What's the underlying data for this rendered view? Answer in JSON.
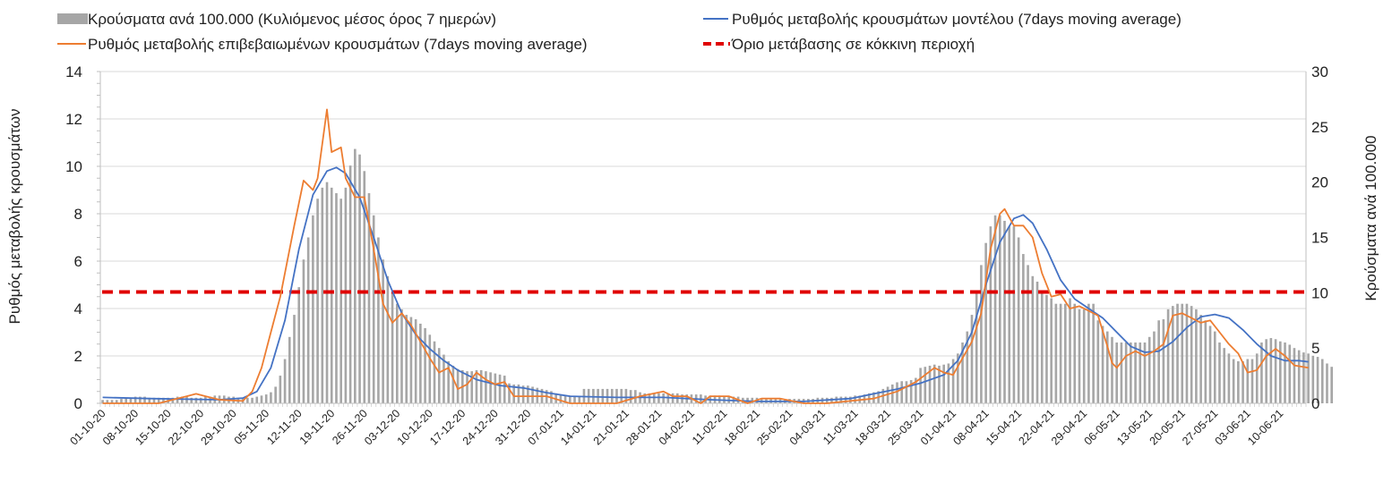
{
  "chart_data": {
    "type": "bar+line",
    "title": "",
    "colors": {
      "bars": "#a6a6a6",
      "model": "#4472c4",
      "confirmed": "#ed7d31",
      "threshold": "#e00000",
      "grid": "#d9d9d9"
    },
    "legend": {
      "placement": "top",
      "items": [
        {
          "key": "bars",
          "label": "Κρούσματα ανά 100.000 (Κυλιόμενος μέσος όρος 7 ημερών)"
        },
        {
          "key": "model",
          "label": "Ρυθμός μεταβολής κρουσμάτων μοντέλου (7days moving average)"
        },
        {
          "key": "confirmed",
          "label": "Ρυθμός μεταβολής επιβεβαιωμένων κρουσμάτων (7days moving average)"
        },
        {
          "key": "threshold",
          "label": "Όριο μετάβασης σε κόκκινη περιοχή"
        }
      ]
    },
    "y_left": {
      "label": "Ρυθμός μεταβολής κρουσμάτων",
      "ylim": [
        0,
        14
      ],
      "ticks": [
        "0",
        "2",
        "4",
        "6",
        "8",
        "10",
        "12",
        "14"
      ]
    },
    "y_right": {
      "label": "Κρούσματα ανά 100.000",
      "ylim": [
        0,
        30
      ],
      "ticks": [
        "0",
        "5",
        "10",
        "15",
        "20",
        "25",
        "30"
      ]
    },
    "grid": true,
    "x": {
      "start": "01-10-20",
      "end": "15-06-21",
      "days": 258,
      "tick_labels": [
        "01-10-20",
        "08-10-20",
        "15-10-20",
        "22-10-20",
        "29-10-20",
        "05-11-20",
        "12-11-20",
        "19-11-20",
        "26-11-20",
        "03-12-20",
        "10-12-20",
        "17-12-20",
        "24-12-20",
        "31-12-20",
        "07-01-21",
        "14-01-21",
        "21-01-21",
        "28-01-21",
        "04-02-21",
        "11-02-21",
        "18-02-21",
        "25-02-21",
        "04-03-21",
        "11-03-21",
        "18-03-21",
        "25-03-21",
        "01-04-21",
        "08-04-21",
        "15-04-21",
        "22-04-21",
        "29-04-21",
        "06-05-21",
        "13-05-21",
        "20-05-21",
        "27-05-21",
        "03-06-21",
        "10-06-21"
      ]
    },
    "series": [
      {
        "name": "Κρούσματα ανά 100.000 (Κυλιόμενος μέσος όρος 7 ημερών)",
        "axis": "right",
        "kind": "bar",
        "values": [
          0.3,
          0.3,
          0.3,
          0.3,
          0.4,
          0.5,
          0.5,
          0.6,
          0.6,
          0.6,
          0.5,
          0.5,
          0.5,
          0.5,
          0.5,
          0.5,
          0.6,
          0.6,
          0.6,
          0.5,
          0.5,
          0.5,
          0.6,
          0.6,
          0.7,
          0.7,
          0.7,
          0.6,
          0.6,
          0.5,
          0.5,
          0.5,
          0.5,
          0.6,
          0.7,
          0.8,
          1.0,
          1.5,
          2.5,
          4.0,
          6.0,
          8.0,
          10.5,
          13.0,
          15.0,
          17.0,
          18.5,
          19.5,
          20.0,
          19.5,
          19.0,
          18.5,
          19.5,
          21.5,
          23.0,
          22.5,
          21.0,
          19.0,
          17.0,
          15.0,
          13.0,
          11.5,
          10.0,
          9.0,
          8.5,
          8.0,
          7.8,
          7.6,
          7.2,
          6.8,
          6.2,
          5.6,
          5.0,
          4.4,
          3.8,
          3.4,
          3.1,
          3.0,
          2.9,
          2.9,
          3.0,
          3.0,
          2.9,
          2.8,
          2.7,
          2.6,
          2.5,
          1.8,
          1.7,
          1.7,
          1.6,
          1.6,
          1.5,
          1.4,
          1.3,
          1.2,
          1.1,
          0.9,
          0.8,
          0.7,
          0.7,
          0.6,
          0.6,
          1.3,
          1.3,
          1.3,
          1.3,
          1.3,
          1.3,
          1.3,
          1.3,
          1.3,
          1.3,
          1.2,
          1.2,
          1.0,
          0.9,
          0.9,
          0.9,
          0.9,
          0.9,
          0.9,
          0.9,
          0.9,
          0.8,
          0.8,
          0.8,
          0.8,
          0.8,
          0.7,
          0.7,
          0.7,
          0.7,
          0.6,
          0.6,
          0.6,
          0.6,
          0.5,
          0.5,
          0.5,
          0.5,
          0.4,
          0.4,
          0.4,
          0.4,
          0.4,
          0.4,
          0.4,
          0.4,
          0.4,
          0.4,
          0.4,
          0.4,
          0.5,
          0.5,
          0.5,
          0.5,
          0.6,
          0.6,
          0.6,
          0.6,
          0.7,
          0.7,
          0.8,
          0.9,
          1.0,
          1.1,
          1.3,
          1.5,
          1.7,
          1.9,
          2.0,
          2.0,
          2.1,
          2.3,
          3.2,
          3.3,
          3.4,
          3.5,
          3.4,
          3.5,
          3.6,
          4.0,
          4.5,
          5.5,
          6.5,
          8.0,
          10.0,
          12.5,
          14.5,
          16.0,
          17.0,
          17.0,
          16.5,
          16.0,
          16.0,
          15.0,
          13.5,
          12.5,
          11.5,
          11.0,
          10.0,
          9.8,
          9.5,
          9.0,
          9.0,
          9.0,
          9.5,
          9.0,
          8.5,
          8.5,
          9.0,
          9.0,
          7.5,
          7.0,
          6.5,
          6.0,
          5.5,
          5.5,
          5.5,
          5.5,
          5.5,
          5.5,
          5.5,
          6.0,
          6.5,
          7.5,
          7.6,
          8.5,
          8.8,
          9.0,
          9.0,
          9.0,
          8.8,
          8.5,
          8.0,
          7.5,
          7.0,
          6.5,
          5.5,
          5.0,
          4.5,
          4.0,
          3.8,
          3.8,
          4.0,
          4.0,
          4.5,
          5.5,
          5.8,
          5.9,
          5.8,
          5.6,
          5.5,
          5.3,
          5.0,
          4.8,
          4.6,
          4.5,
          4.3,
          4.2,
          4.0,
          3.6,
          3.3
        ]
      },
      {
        "name": "Ρυθμός μεταβολής κρουσμάτων μοντέλου (7days moving average)",
        "axis": "left",
        "kind": "line",
        "points": [
          [
            0,
            0.25
          ],
          [
            10,
            0.2
          ],
          [
            25,
            0.15
          ],
          [
            30,
            0.22
          ],
          [
            33,
            0.5
          ],
          [
            36,
            1.5
          ],
          [
            39,
            3.5
          ],
          [
            42,
            6.5
          ],
          [
            45,
            8.8
          ],
          [
            48,
            9.8
          ],
          [
            50,
            9.95
          ],
          [
            52,
            9.7
          ],
          [
            55,
            8.7
          ],
          [
            58,
            7.0
          ],
          [
            61,
            5.2
          ],
          [
            64,
            3.8
          ],
          [
            67,
            2.9
          ],
          [
            70,
            2.3
          ],
          [
            73,
            1.8
          ],
          [
            76,
            1.4
          ],
          [
            80,
            1.0
          ],
          [
            85,
            0.75
          ],
          [
            90,
            0.65
          ],
          [
            95,
            0.45
          ],
          [
            100,
            0.3
          ],
          [
            110,
            0.25
          ],
          [
            120,
            0.25
          ],
          [
            130,
            0.15
          ],
          [
            140,
            0.08
          ],
          [
            150,
            0.08
          ],
          [
            160,
            0.2
          ],
          [
            165,
            0.4
          ],
          [
            170,
            0.6
          ],
          [
            175,
            0.85
          ],
          [
            180,
            1.2
          ],
          [
            183,
            1.8
          ],
          [
            186,
            3.0
          ],
          [
            189,
            5.0
          ],
          [
            192,
            6.8
          ],
          [
            195,
            7.8
          ],
          [
            197,
            7.95
          ],
          [
            199,
            7.6
          ],
          [
            202,
            6.5
          ],
          [
            205,
            5.2
          ],
          [
            208,
            4.4
          ],
          [
            211,
            4.0
          ],
          [
            214,
            3.6
          ],
          [
            217,
            3.0
          ],
          [
            220,
            2.4
          ],
          [
            223,
            2.15
          ],
          [
            226,
            2.2
          ],
          [
            229,
            2.6
          ],
          [
            232,
            3.2
          ],
          [
            235,
            3.65
          ],
          [
            238,
            3.75
          ],
          [
            241,
            3.6
          ],
          [
            244,
            3.1
          ],
          [
            247,
            2.5
          ],
          [
            250,
            2.0
          ],
          [
            253,
            1.8
          ],
          [
            256,
            1.8
          ],
          [
            258,
            1.75
          ]
        ]
      },
      {
        "name": "Ρυθμός μεταβολής επιβεβαιωμένων κρουσμάτων (7days moving average)",
        "axis": "left",
        "kind": "line",
        "points": [
          [
            0,
            0.0
          ],
          [
            12,
            0.0
          ],
          [
            15,
            0.15
          ],
          [
            18,
            0.3
          ],
          [
            20,
            0.4
          ],
          [
            22,
            0.3
          ],
          [
            25,
            0.15
          ],
          [
            30,
            0.1
          ],
          [
            32,
            0.5
          ],
          [
            34,
            1.5
          ],
          [
            36,
            3.0
          ],
          [
            38,
            4.5
          ],
          [
            40,
            6.5
          ],
          [
            41,
            7.5
          ],
          [
            43,
            9.4
          ],
          [
            45,
            9.0
          ],
          [
            46,
            9.5
          ],
          [
            48,
            12.4
          ],
          [
            49,
            10.6
          ],
          [
            51,
            10.8
          ],
          [
            52,
            9.5
          ],
          [
            54,
            8.7
          ],
          [
            56,
            8.7
          ],
          [
            58,
            6.5
          ],
          [
            60,
            4.2
          ],
          [
            62,
            3.4
          ],
          [
            64,
            3.8
          ],
          [
            66,
            3.3
          ],
          [
            68,
            2.6
          ],
          [
            70,
            1.9
          ],
          [
            72,
            1.3
          ],
          [
            74,
            1.5
          ],
          [
            76,
            0.6
          ],
          [
            78,
            0.8
          ],
          [
            80,
            1.3
          ],
          [
            82,
            1.0
          ],
          [
            84,
            0.8
          ],
          [
            86,
            0.9
          ],
          [
            88,
            0.3
          ],
          [
            90,
            0.3
          ],
          [
            95,
            0.3
          ],
          [
            100,
            0.0
          ],
          [
            110,
            0.0
          ],
          [
            115,
            0.3
          ],
          [
            120,
            0.5
          ],
          [
            122,
            0.3
          ],
          [
            125,
            0.3
          ],
          [
            128,
            0.0
          ],
          [
            130,
            0.3
          ],
          [
            134,
            0.3
          ],
          [
            138,
            0.0
          ],
          [
            141,
            0.2
          ],
          [
            145,
            0.2
          ],
          [
            150,
            0.0
          ],
          [
            155,
            0.0
          ],
          [
            160,
            0.1
          ],
          [
            165,
            0.2
          ],
          [
            170,
            0.5
          ],
          [
            174,
            0.9
          ],
          [
            178,
            1.5
          ],
          [
            180,
            1.3
          ],
          [
            182,
            1.2
          ],
          [
            184,
            1.9
          ],
          [
            186,
            2.6
          ],
          [
            188,
            3.8
          ],
          [
            190,
            6.5
          ],
          [
            192,
            8.0
          ],
          [
            193,
            8.2
          ],
          [
            195,
            7.5
          ],
          [
            197,
            7.5
          ],
          [
            199,
            7.0
          ],
          [
            201,
            5.5
          ],
          [
            203,
            4.5
          ],
          [
            205,
            4.6
          ],
          [
            207,
            4.0
          ],
          [
            209,
            4.1
          ],
          [
            211,
            3.9
          ],
          [
            213,
            3.7
          ],
          [
            215,
            2.4
          ],
          [
            216,
            1.7
          ],
          [
            217,
            1.5
          ],
          [
            219,
            2.0
          ],
          [
            221,
            2.2
          ],
          [
            223,
            2.0
          ],
          [
            225,
            2.2
          ],
          [
            227,
            2.5
          ],
          [
            229,
            3.7
          ],
          [
            231,
            3.8
          ],
          [
            233,
            3.6
          ],
          [
            235,
            3.4
          ],
          [
            237,
            3.5
          ],
          [
            239,
            3.0
          ],
          [
            241,
            2.5
          ],
          [
            243,
            2.1
          ],
          [
            245,
            1.3
          ],
          [
            247,
            1.4
          ],
          [
            249,
            2.0
          ],
          [
            251,
            2.3
          ],
          [
            253,
            2.0
          ],
          [
            255,
            1.6
          ],
          [
            258,
            1.5
          ]
        ]
      },
      {
        "name": "Όριο μετάβασης σε κόκκινη περιοχή",
        "axis": "left",
        "kind": "hline",
        "value": 4.7
      }
    ]
  }
}
